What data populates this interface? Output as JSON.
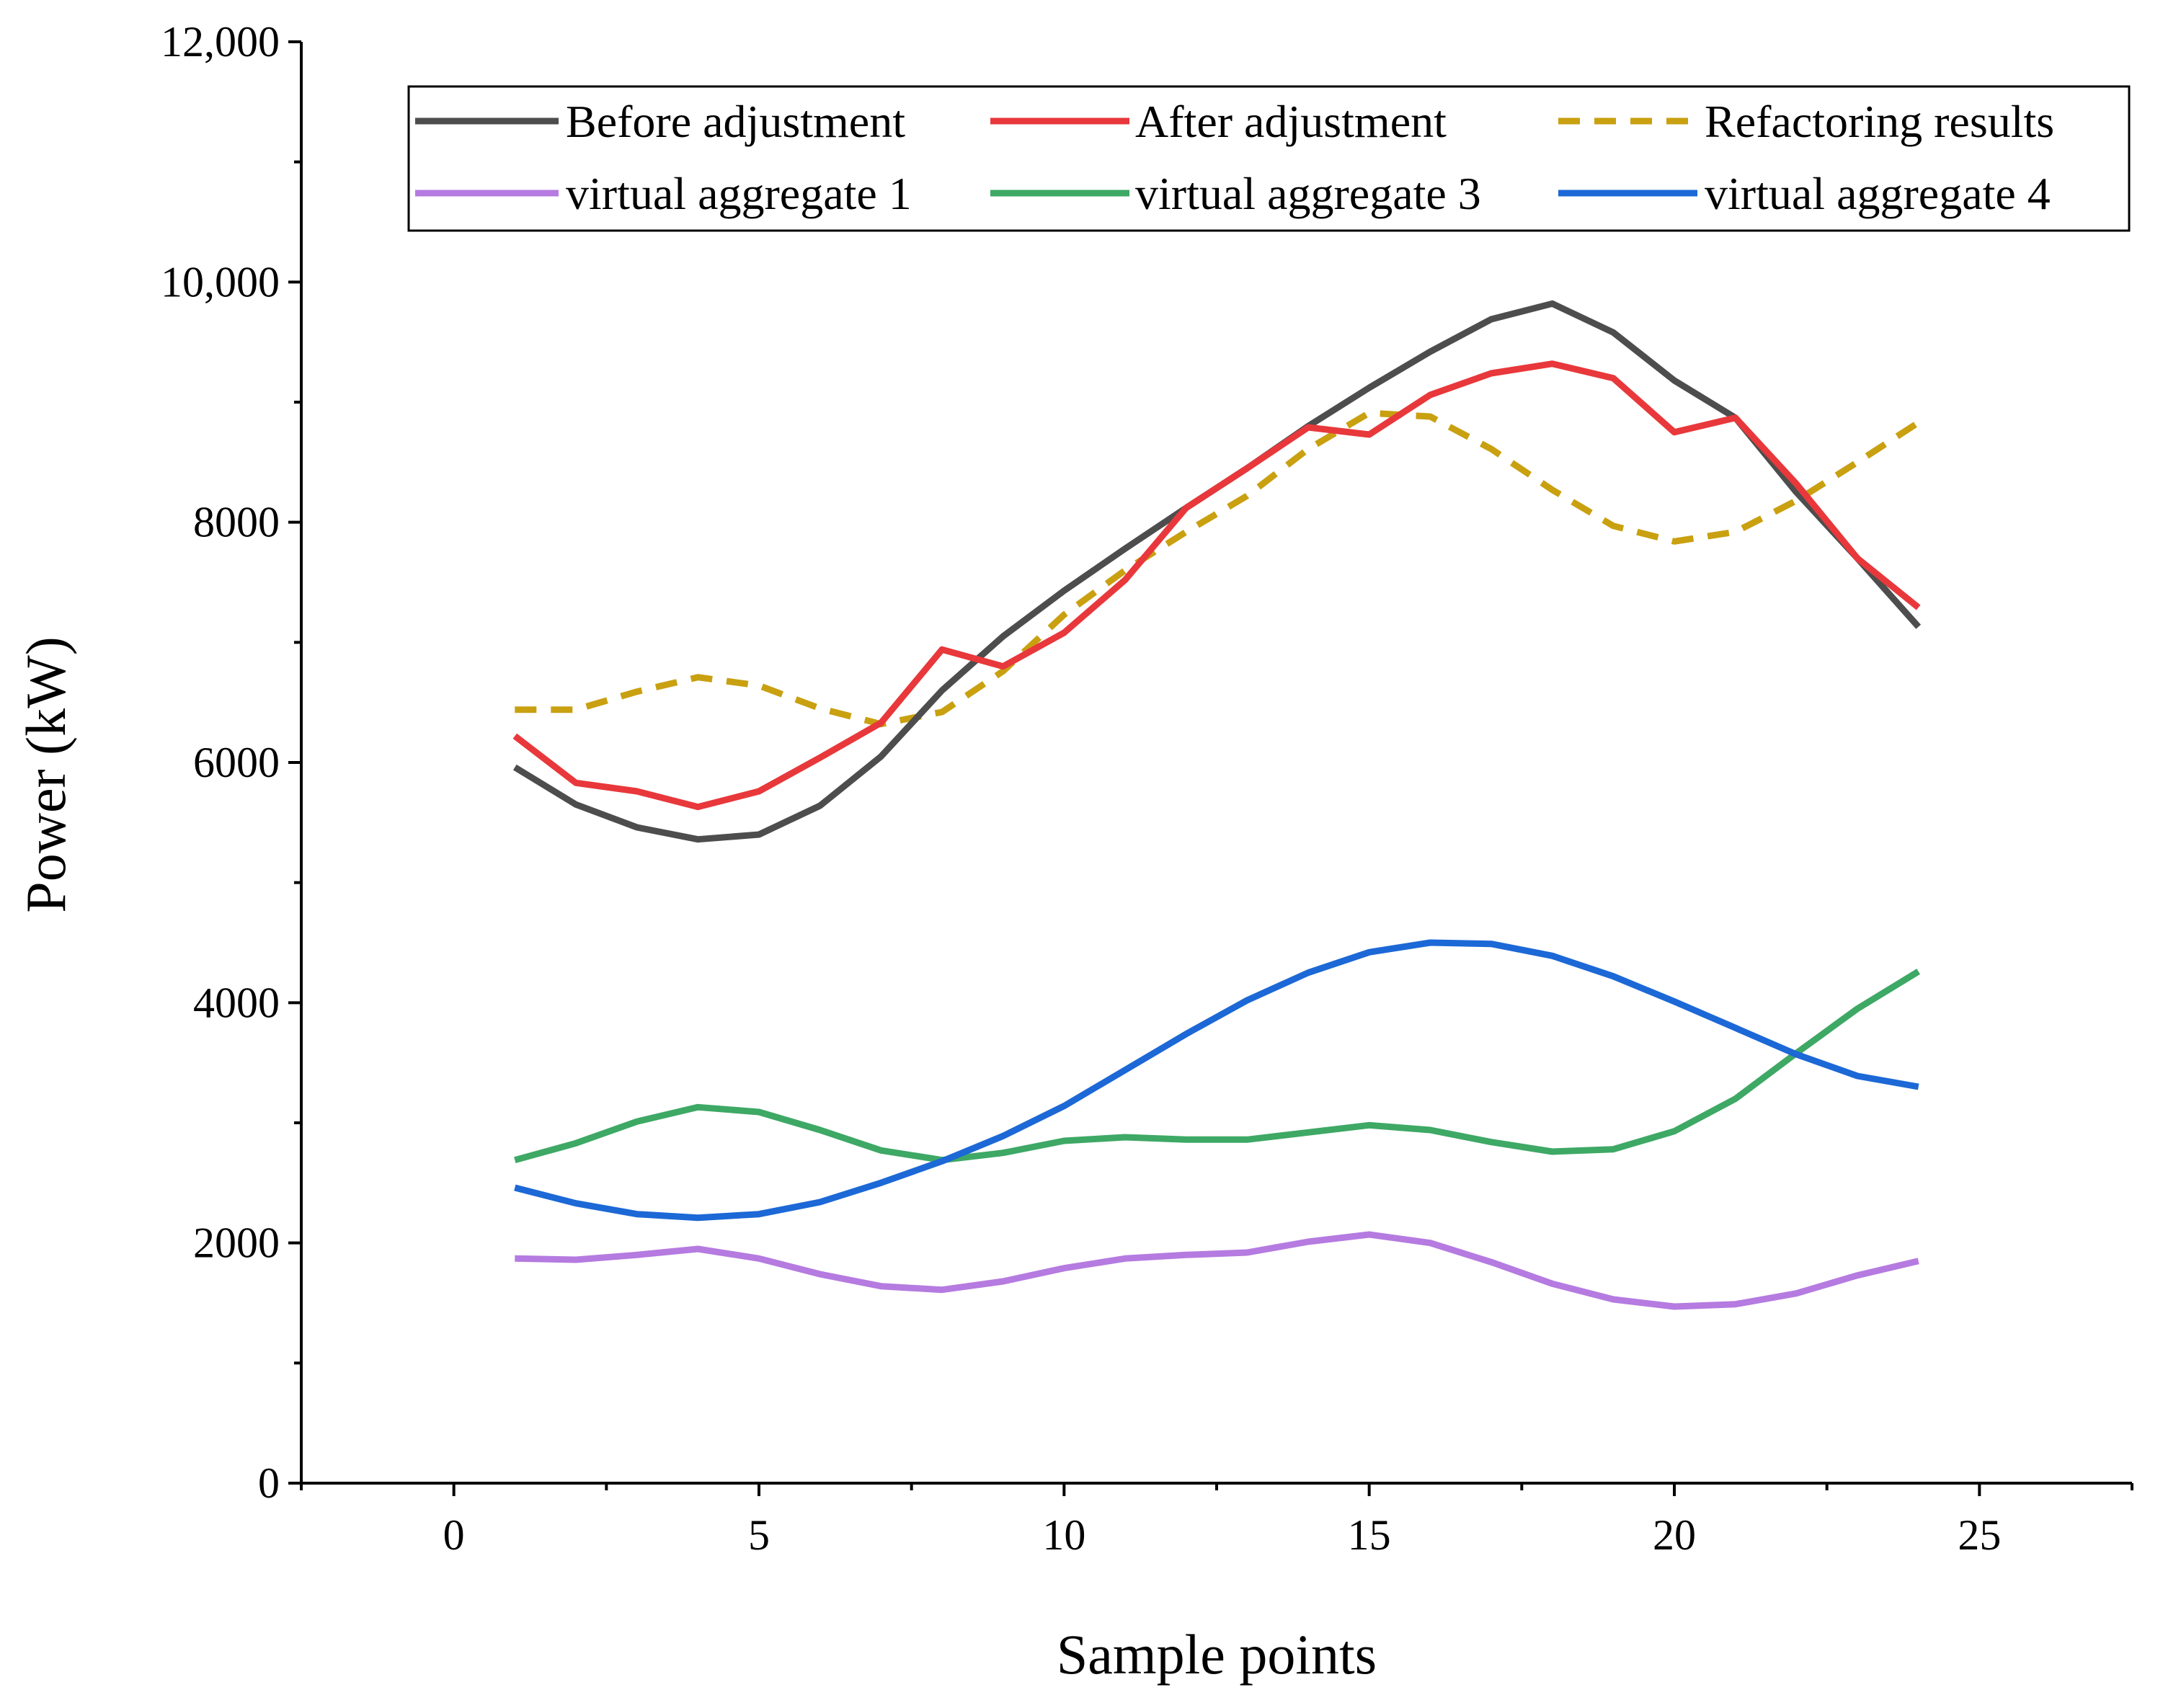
{
  "chart_data": {
    "type": "line",
    "title": "",
    "xlabel": "Sample points",
    "ylabel": "Power (kW)",
    "xlim": [
      -2.5,
      27.5
    ],
    "ylim": [
      0,
      12000
    ],
    "xticks": [
      0,
      5,
      10,
      15,
      20,
      25
    ],
    "xtick_labels": [
      "0",
      "5",
      "10",
      "15",
      "20",
      "25"
    ],
    "yticks": [
      0,
      2000,
      4000,
      6000,
      8000,
      10000,
      12000
    ],
    "ytick_labels": [
      "0",
      "2000",
      "4000",
      "6000",
      "8000",
      "10,000",
      "12,000"
    ],
    "grid": false,
    "legend_position": "top",
    "x": [
      1,
      2,
      3,
      4,
      5,
      6,
      7,
      8,
      9,
      10,
      11,
      12,
      13,
      14,
      15,
      16,
      17,
      18,
      19,
      20,
      21,
      22,
      23,
      24
    ],
    "series": [
      {
        "name": "Before adjustment",
        "color": "#4d4d4d",
        "dash": "solid",
        "values": [
          5960,
          5650,
          5460,
          5360,
          5400,
          5640,
          6050,
          6600,
          7050,
          7430,
          7780,
          8120,
          8450,
          8800,
          9120,
          9420,
          9690,
          9820,
          9580,
          9180,
          8870,
          8250,
          7700,
          7130
        ]
      },
      {
        "name": "After adjustment",
        "color": "#e8383b",
        "dash": "solid",
        "values": [
          6220,
          5830,
          5760,
          5630,
          5760,
          6040,
          6330,
          6940,
          6800,
          7080,
          7520,
          8120,
          8450,
          8790,
          8730,
          9060,
          9240,
          9320,
          9200,
          8750,
          8870,
          8320,
          7700,
          7290
        ]
      },
      {
        "name": "Refactoring results",
        "color": "#c9a010",
        "dash": "dashed",
        "values": [
          6440,
          6440,
          6590,
          6710,
          6640,
          6450,
          6320,
          6420,
          6760,
          7230,
          7600,
          7920,
          8220,
          8610,
          8910,
          8880,
          8610,
          8270,
          7970,
          7840,
          7920,
          8180,
          8500,
          8830
        ]
      },
      {
        "name": "virtual aggregate 1",
        "color": "#b57be0",
        "dash": "solid",
        "values": [
          1870,
          1860,
          1900,
          1950,
          1870,
          1740,
          1640,
          1610,
          1680,
          1790,
          1870,
          1900,
          1920,
          2010,
          2070,
          2000,
          1840,
          1660,
          1530,
          1470,
          1490,
          1580,
          1730,
          1850
        ]
      },
      {
        "name": "virtual aggregate 3",
        "color": "#3ea865",
        "dash": "solid",
        "values": [
          2690,
          2830,
          3010,
          3130,
          3090,
          2940,
          2770,
          2690,
          2750,
          2850,
          2880,
          2860,
          2860,
          2920,
          2980,
          2940,
          2840,
          2760,
          2780,
          2930,
          3200,
          3580,
          3950,
          4260
        ]
      },
      {
        "name": "virtual aggregate 4",
        "color": "#1c68d6",
        "dash": "solid",
        "values": [
          2460,
          2330,
          2240,
          2210,
          2240,
          2340,
          2500,
          2680,
          2890,
          3140,
          3440,
          3740,
          4020,
          4250,
          4420,
          4500,
          4490,
          4390,
          4220,
          4010,
          3790,
          3570,
          3390,
          3300
        ]
      }
    ]
  }
}
